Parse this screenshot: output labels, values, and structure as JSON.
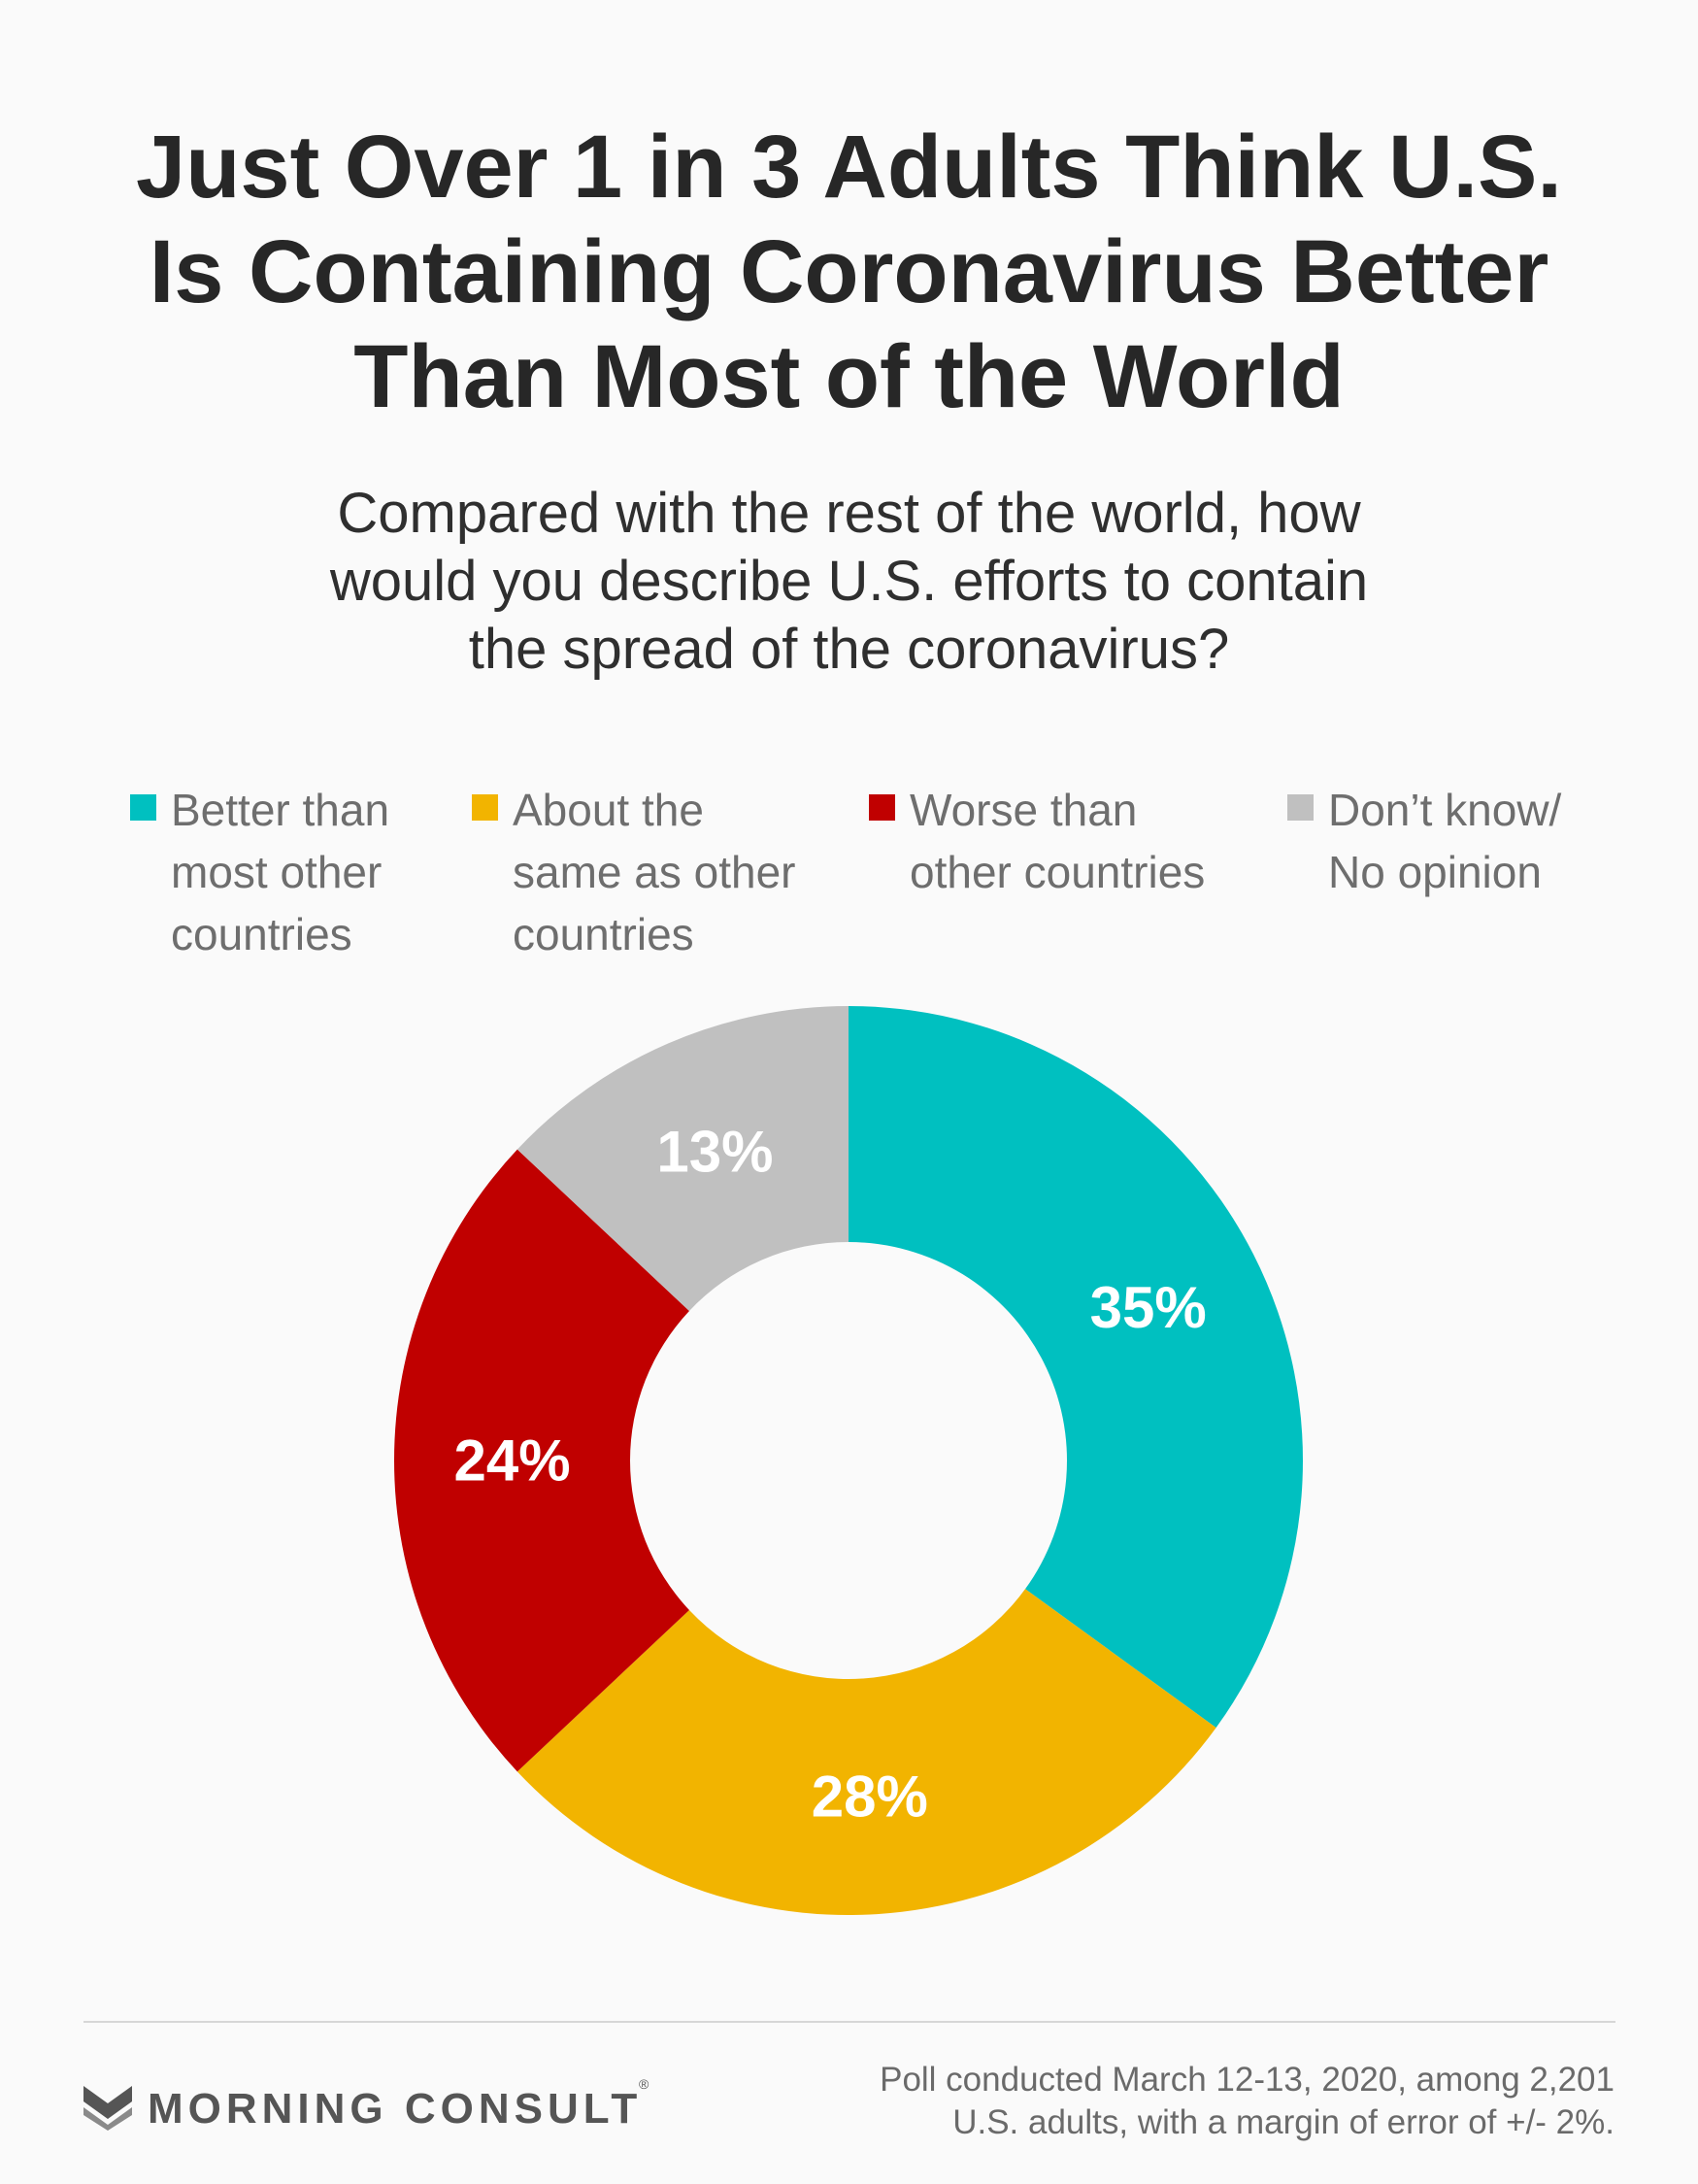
{
  "title_lines": [
    "Just Over 1 in 3 Adults Think U.S.",
    "Is Containing Coronavirus Better",
    "Than Most of the World"
  ],
  "question_lines": [
    "Compared with the rest of the world, how",
    "would you describe U.S. efforts to contain",
    "the spread of the coronavirus?"
  ],
  "chart_data": {
    "type": "pie",
    "style": "donut",
    "title": "Just Over 1 in 3 Adults Think U.S. Is Containing Coronavirus Better Than Most of the World",
    "subtitle": "Compared with the rest of the world, how would you describe U.S. efforts to contain the spread of the coronavirus?",
    "unit": "%",
    "legend_position": "top",
    "slices": [
      {
        "label": "Better than most other countries",
        "legend_lines": [
          "Better than",
          "most other",
          "countries"
        ],
        "value": 35,
        "value_label": "35%",
        "color": "#00c0c0"
      },
      {
        "label": "About the same as other countries",
        "legend_lines": [
          "About the",
          "same as other",
          "countries"
        ],
        "value": 28,
        "value_label": "28%",
        "color": "#f2b400"
      },
      {
        "label": "Worse than other countries",
        "legend_lines": [
          "Worse than",
          "other countries"
        ],
        "value": 24,
        "value_label": "24%",
        "color": "#c00000"
      },
      {
        "label": "Don’t know/ No opinion",
        "legend_lines": [
          "Don’t know/",
          "No opinion"
        ],
        "value": 13,
        "value_label": "13%",
        "color": "#c0c0c0"
      }
    ]
  },
  "footer": {
    "brand": "MORNING CONSULT",
    "brand_mark": "®",
    "logo_icon": "morning-consult-m-icon",
    "note_lines": [
      "Poll conducted March 12-13, 2020, among 2,201",
      "U.S. adults, with a margin of error of +/- 2%."
    ]
  }
}
